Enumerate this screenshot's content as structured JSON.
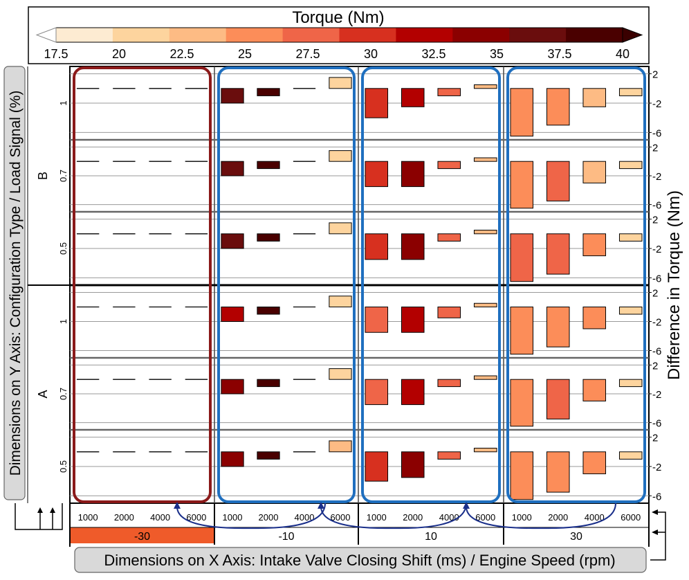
{
  "chart_data": {
    "type": "heatmap",
    "title": "",
    "colorbar": {
      "title": "Torque (Nm)",
      "ticks": [
        "17.5",
        "20",
        "22.5",
        "25",
        "27.5",
        "30",
        "32.5",
        "35",
        "37.5",
        "40"
      ],
      "colors": [
        "#fdebd2",
        "#fdd49e",
        "#fdbb84",
        "#fc8d59",
        "#ef6548",
        "#d7301f",
        "#b30000",
        "#8b0000",
        "#6a0d0d",
        "#4a0000"
      ],
      "extend": "both"
    },
    "ylabel": "Dimensions on Y Axis: Configuration Type / Load Signal (%)",
    "xlabel": "Dimensions on X Axis: Intake Valve Closing Shift (ms) / Engine Speed (rpm)",
    "y2label": "Difference in Torque (Nm)",
    "y2_ticks": [
      "2",
      "-2",
      "-6"
    ],
    "y2_range": [
      -7,
      3
    ],
    "x_outer": [
      "-30",
      "-10",
      "10",
      "30"
    ],
    "x_inner": [
      "1000",
      "2000",
      "4000",
      "6000"
    ],
    "y_outer": [
      "B",
      "A"
    ],
    "y_inner": [
      "1",
      "0.7",
      "0.5"
    ],
    "panels": [
      {
        "config": "B",
        "load": "1",
        "ivc": [
          {
            "diff": [
              0,
              0,
              0,
              0
            ],
            "torque": [
              null,
              null,
              null,
              null
            ]
          },
          {
            "diff": [
              -2,
              -1,
              0,
              1.5
            ],
            "torque": [
              36,
              38,
              null,
              21
            ]
          },
          {
            "diff": [
              -4,
              -2.5,
              -1,
              0.5
            ],
            "torque": [
              29,
              31.5,
              27,
              22
            ]
          },
          {
            "diff": [
              -6.5,
              -5,
              -2.5,
              -1
            ],
            "torque": [
              25.5,
              26,
              23,
              20
            ]
          }
        ]
      },
      {
        "config": "B",
        "load": "0.7",
        "ivc": [
          {
            "diff": [
              0,
              0,
              0,
              0
            ],
            "torque": [
              null,
              null,
              null,
              null
            ]
          },
          {
            "diff": [
              -2,
              -1,
              0,
              1.5
            ],
            "torque": [
              35.5,
              38.5,
              null,
              21.5
            ]
          },
          {
            "diff": [
              -3.5,
              -3.5,
              -1,
              0.5
            ],
            "torque": [
              29.5,
              33.5,
              28,
              22.5
            ]
          },
          {
            "diff": [
              -6.5,
              -5.5,
              -3,
              -1
            ],
            "torque": [
              26,
              27.5,
              24,
              21.5
            ]
          }
        ]
      },
      {
        "config": "B",
        "load": "0.5",
        "ivc": [
          {
            "diff": [
              0,
              0,
              0,
              0
            ],
            "torque": [
              null,
              null,
              null,
              null
            ]
          },
          {
            "diff": [
              -2,
              -1,
              0,
              1.5
            ],
            "torque": [
              36,
              38.5,
              null,
              21.5
            ]
          },
          {
            "diff": [
              -3.5,
              -3.5,
              -1,
              0.5
            ],
            "torque": [
              29.5,
              33.5,
              28.5,
              22.5
            ]
          },
          {
            "diff": [
              -6.5,
              -5.5,
              -3,
              -1
            ],
            "torque": [
              26.5,
              28.5,
              24.5,
              21.5
            ]
          }
        ]
      },
      {
        "config": "A",
        "load": "1",
        "ivc": [
          {
            "diff": [
              0,
              0,
              0,
              0
            ],
            "torque": [
              null,
              null,
              null,
              null
            ]
          },
          {
            "diff": [
              -2,
              -1,
              0,
              1.5
            ],
            "torque": [
              33,
              38.5,
              null,
              21.5
            ]
          },
          {
            "diff": [
              -3.5,
              -3.5,
              -1.5,
              0.5
            ],
            "torque": [
              28.5,
              33,
              28,
              22.5
            ]
          },
          {
            "diff": [
              -6.5,
              -5.5,
              -3,
              -1
            ],
            "torque": [
              25.5,
              26,
              24.5,
              21.5
            ]
          }
        ]
      },
      {
        "config": "A",
        "load": "0.7",
        "ivc": [
          {
            "diff": [
              0,
              0,
              0,
              0
            ],
            "torque": [
              null,
              null,
              null,
              null
            ]
          },
          {
            "diff": [
              -2,
              -1,
              0,
              1.5
            ],
            "torque": [
              34,
              38,
              null,
              21.5
            ]
          },
          {
            "diff": [
              -3.5,
              -3.5,
              -1,
              0.5
            ],
            "torque": [
              28.5,
              33,
              28,
              22.5
            ]
          },
          {
            "diff": [
              -6.5,
              -5.5,
              -3,
              -1
            ],
            "torque": [
              25.5,
              26.5,
              24.5,
              21.5
            ]
          }
        ]
      },
      {
        "config": "A",
        "load": "0.5",
        "ivc": [
          {
            "diff": [
              0,
              0,
              0,
              0
            ],
            "torque": [
              null,
              null,
              null,
              null
            ]
          },
          {
            "diff": [
              -2,
              -1,
              0,
              1.5
            ],
            "torque": [
              33.5,
              38.5,
              null,
              22
            ]
          },
          {
            "diff": [
              -4,
              -3.5,
              -1,
              0.5
            ],
            "torque": [
              29,
              34,
              28,
              23
            ]
          },
          {
            "diff": [
              -6.5,
              -5.5,
              -3,
              -1
            ],
            "torque": [
              25.5,
              26,
              24.5,
              21.5
            ]
          }
        ]
      }
    ],
    "highlights": [
      {
        "ivc": "-30",
        "color": "#8b1a1a"
      },
      {
        "ivc": "-10",
        "color": "#1f6fbf"
      },
      {
        "ivc": "10",
        "color": "#1f6fbf"
      },
      {
        "ivc": "30",
        "color": "#1f6fbf"
      }
    ],
    "selected_ivc": "-30",
    "selected_color": "#ef5b2a",
    "grid": true
  }
}
